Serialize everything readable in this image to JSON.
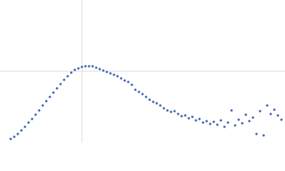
{
  "chart_data": {
    "type": "scatter",
    "color": "#3d64b0",
    "x": [
      15,
      20,
      25,
      30,
      35,
      40,
      45,
      50,
      55,
      60,
      65,
      70,
      75,
      80,
      85,
      90,
      95,
      100,
      105,
      110,
      115,
      120,
      125,
      130,
      135,
      140,
      145,
      150,
      155,
      160,
      165,
      170,
      175,
      180,
      185,
      190,
      195,
      200,
      205,
      210,
      215,
      220,
      225,
      230,
      235,
      240,
      245,
      250,
      255,
      260,
      265,
      270,
      275,
      280,
      285,
      290,
      295,
      300,
      305,
      310,
      315,
      320,
      325,
      330,
      335,
      340,
      345,
      350,
      355,
      360,
      365,
      370,
      375,
      380,
      385,
      390,
      395
    ],
    "values": [
      5,
      8,
      12,
      17,
      22,
      28,
      33,
      39,
      45,
      52,
      58,
      64,
      70,
      76,
      82,
      88,
      93,
      98,
      102,
      104,
      106,
      107,
      107,
      107,
      105,
      103,
      101,
      99,
      97,
      95,
      93,
      90,
      87,
      85,
      81,
      74,
      71,
      68,
      64,
      60,
      57,
      55,
      52,
      48,
      45,
      43,
      44,
      40,
      37,
      38,
      34,
      36,
      31,
      33,
      28,
      30,
      26,
      29,
      25,
      31,
      22,
      28,
      45,
      24,
      32,
      27,
      39,
      30,
      35,
      12,
      44,
      10,
      52,
      40,
      46,
      38,
      32
    ],
    "xlim": [
      0,
      400
    ],
    "ylim": [
      0,
      200
    ],
    "xticks": [
      115
    ],
    "yticks": [
      100
    ],
    "grid": true
  }
}
